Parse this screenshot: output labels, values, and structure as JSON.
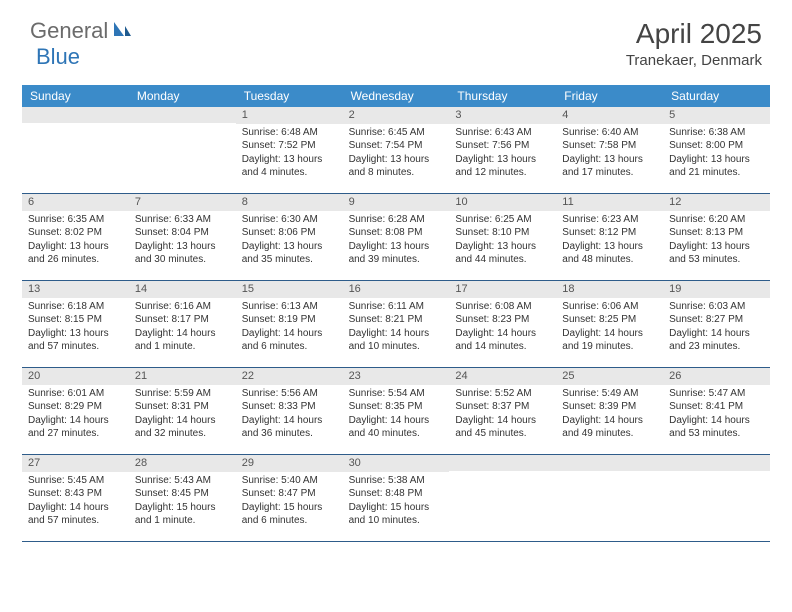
{
  "logo": {
    "general": "General",
    "blue": "Blue"
  },
  "title": "April 2025",
  "location": "Tranekaer, Denmark",
  "header_bg": "#3b8bc9",
  "weekdays": [
    "Sunday",
    "Monday",
    "Tuesday",
    "Wednesday",
    "Thursday",
    "Friday",
    "Saturday"
  ],
  "weeks": [
    [
      {
        "empty": true
      },
      {
        "empty": true
      },
      {
        "num": "1",
        "sunrise": "Sunrise: 6:48 AM",
        "sunset": "Sunset: 7:52 PM",
        "daylight": "Daylight: 13 hours and 4 minutes."
      },
      {
        "num": "2",
        "sunrise": "Sunrise: 6:45 AM",
        "sunset": "Sunset: 7:54 PM",
        "daylight": "Daylight: 13 hours and 8 minutes."
      },
      {
        "num": "3",
        "sunrise": "Sunrise: 6:43 AM",
        "sunset": "Sunset: 7:56 PM",
        "daylight": "Daylight: 13 hours and 12 minutes."
      },
      {
        "num": "4",
        "sunrise": "Sunrise: 6:40 AM",
        "sunset": "Sunset: 7:58 PM",
        "daylight": "Daylight: 13 hours and 17 minutes."
      },
      {
        "num": "5",
        "sunrise": "Sunrise: 6:38 AM",
        "sunset": "Sunset: 8:00 PM",
        "daylight": "Daylight: 13 hours and 21 minutes."
      }
    ],
    [
      {
        "num": "6",
        "sunrise": "Sunrise: 6:35 AM",
        "sunset": "Sunset: 8:02 PM",
        "daylight": "Daylight: 13 hours and 26 minutes."
      },
      {
        "num": "7",
        "sunrise": "Sunrise: 6:33 AM",
        "sunset": "Sunset: 8:04 PM",
        "daylight": "Daylight: 13 hours and 30 minutes."
      },
      {
        "num": "8",
        "sunrise": "Sunrise: 6:30 AM",
        "sunset": "Sunset: 8:06 PM",
        "daylight": "Daylight: 13 hours and 35 minutes."
      },
      {
        "num": "9",
        "sunrise": "Sunrise: 6:28 AM",
        "sunset": "Sunset: 8:08 PM",
        "daylight": "Daylight: 13 hours and 39 minutes."
      },
      {
        "num": "10",
        "sunrise": "Sunrise: 6:25 AM",
        "sunset": "Sunset: 8:10 PM",
        "daylight": "Daylight: 13 hours and 44 minutes."
      },
      {
        "num": "11",
        "sunrise": "Sunrise: 6:23 AM",
        "sunset": "Sunset: 8:12 PM",
        "daylight": "Daylight: 13 hours and 48 minutes."
      },
      {
        "num": "12",
        "sunrise": "Sunrise: 6:20 AM",
        "sunset": "Sunset: 8:13 PM",
        "daylight": "Daylight: 13 hours and 53 minutes."
      }
    ],
    [
      {
        "num": "13",
        "sunrise": "Sunrise: 6:18 AM",
        "sunset": "Sunset: 8:15 PM",
        "daylight": "Daylight: 13 hours and 57 minutes."
      },
      {
        "num": "14",
        "sunrise": "Sunrise: 6:16 AM",
        "sunset": "Sunset: 8:17 PM",
        "daylight": "Daylight: 14 hours and 1 minute."
      },
      {
        "num": "15",
        "sunrise": "Sunrise: 6:13 AM",
        "sunset": "Sunset: 8:19 PM",
        "daylight": "Daylight: 14 hours and 6 minutes."
      },
      {
        "num": "16",
        "sunrise": "Sunrise: 6:11 AM",
        "sunset": "Sunset: 8:21 PM",
        "daylight": "Daylight: 14 hours and 10 minutes."
      },
      {
        "num": "17",
        "sunrise": "Sunrise: 6:08 AM",
        "sunset": "Sunset: 8:23 PM",
        "daylight": "Daylight: 14 hours and 14 minutes."
      },
      {
        "num": "18",
        "sunrise": "Sunrise: 6:06 AM",
        "sunset": "Sunset: 8:25 PM",
        "daylight": "Daylight: 14 hours and 19 minutes."
      },
      {
        "num": "19",
        "sunrise": "Sunrise: 6:03 AM",
        "sunset": "Sunset: 8:27 PM",
        "daylight": "Daylight: 14 hours and 23 minutes."
      }
    ],
    [
      {
        "num": "20",
        "sunrise": "Sunrise: 6:01 AM",
        "sunset": "Sunset: 8:29 PM",
        "daylight": "Daylight: 14 hours and 27 minutes."
      },
      {
        "num": "21",
        "sunrise": "Sunrise: 5:59 AM",
        "sunset": "Sunset: 8:31 PM",
        "daylight": "Daylight: 14 hours and 32 minutes."
      },
      {
        "num": "22",
        "sunrise": "Sunrise: 5:56 AM",
        "sunset": "Sunset: 8:33 PM",
        "daylight": "Daylight: 14 hours and 36 minutes."
      },
      {
        "num": "23",
        "sunrise": "Sunrise: 5:54 AM",
        "sunset": "Sunset: 8:35 PM",
        "daylight": "Daylight: 14 hours and 40 minutes."
      },
      {
        "num": "24",
        "sunrise": "Sunrise: 5:52 AM",
        "sunset": "Sunset: 8:37 PM",
        "daylight": "Daylight: 14 hours and 45 minutes."
      },
      {
        "num": "25",
        "sunrise": "Sunrise: 5:49 AM",
        "sunset": "Sunset: 8:39 PM",
        "daylight": "Daylight: 14 hours and 49 minutes."
      },
      {
        "num": "26",
        "sunrise": "Sunrise: 5:47 AM",
        "sunset": "Sunset: 8:41 PM",
        "daylight": "Daylight: 14 hours and 53 minutes."
      }
    ],
    [
      {
        "num": "27",
        "sunrise": "Sunrise: 5:45 AM",
        "sunset": "Sunset: 8:43 PM",
        "daylight": "Daylight: 14 hours and 57 minutes."
      },
      {
        "num": "28",
        "sunrise": "Sunrise: 5:43 AM",
        "sunset": "Sunset: 8:45 PM",
        "daylight": "Daylight: 15 hours and 1 minute."
      },
      {
        "num": "29",
        "sunrise": "Sunrise: 5:40 AM",
        "sunset": "Sunset: 8:47 PM",
        "daylight": "Daylight: 15 hours and 6 minutes."
      },
      {
        "num": "30",
        "sunrise": "Sunrise: 5:38 AM",
        "sunset": "Sunset: 8:48 PM",
        "daylight": "Daylight: 15 hours and 10 minutes."
      },
      {
        "empty": true
      },
      {
        "empty": true
      },
      {
        "empty": true
      }
    ]
  ]
}
